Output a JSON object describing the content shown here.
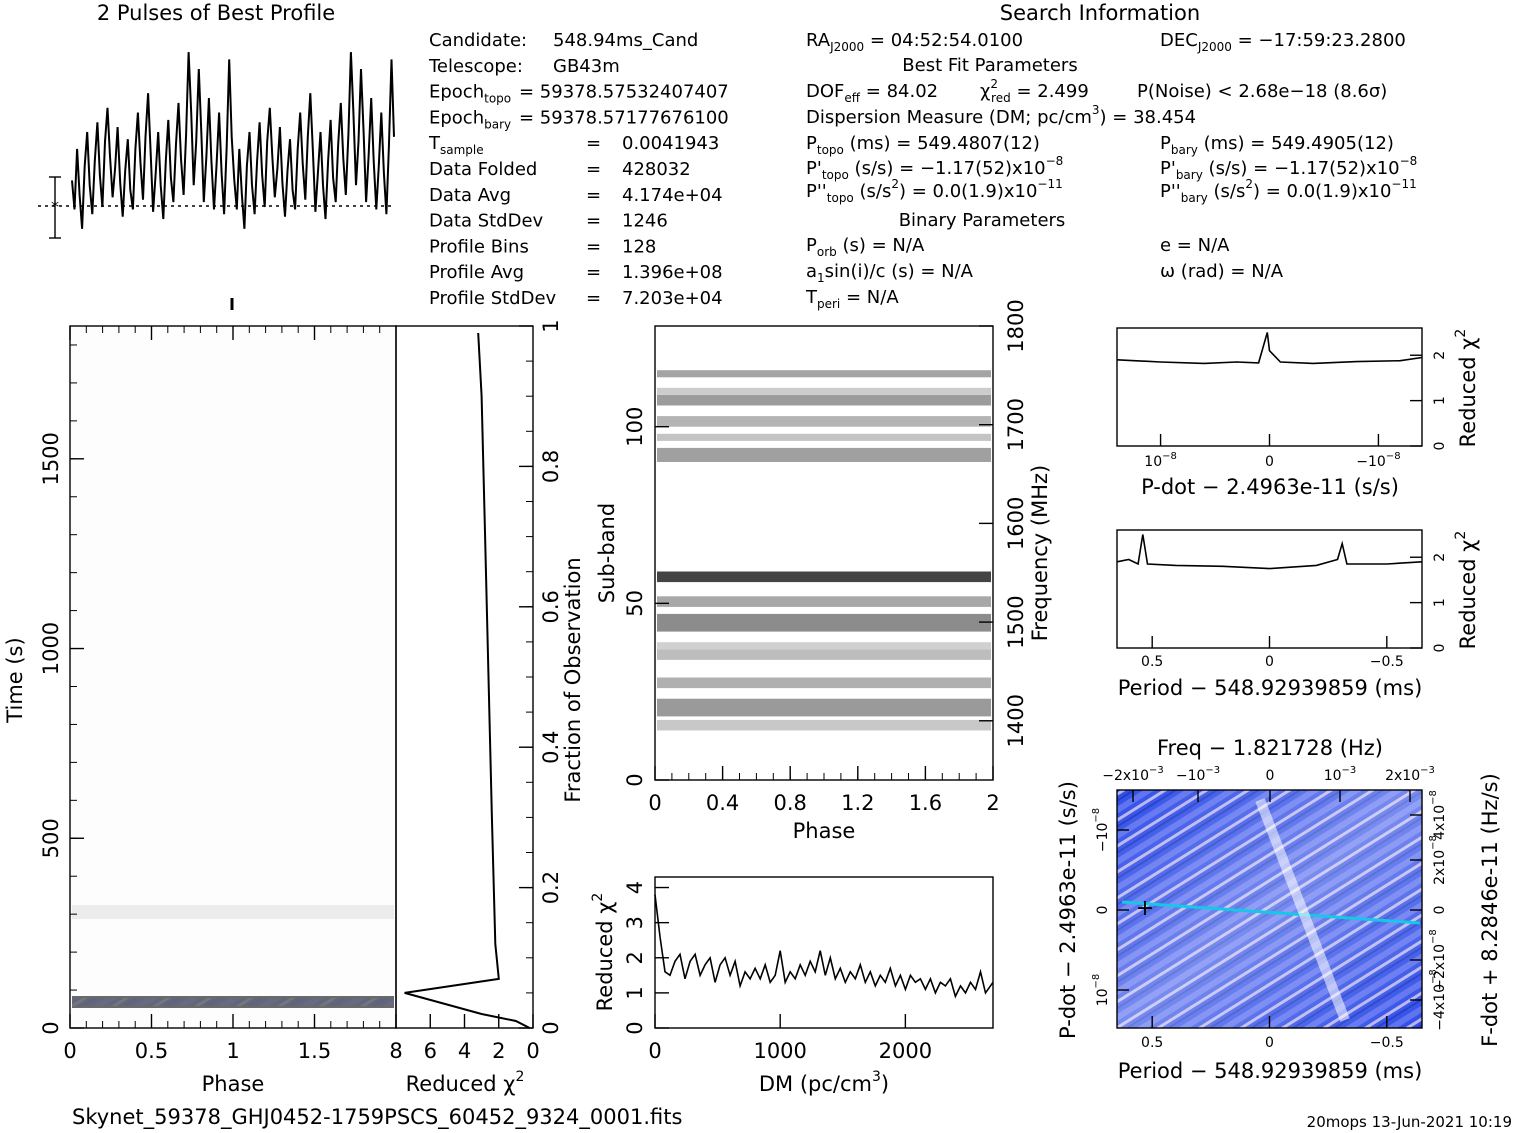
{
  "filename": "Skynet_59378_GHJ0452-1759PSCS_60452_9324_0001.fits",
  "stamp": "20mops 13-Jun-2021 10:19",
  "profile": {
    "title": "2 Pulses of Best Profile"
  },
  "search_info": {
    "title": "Search Information",
    "best_fit_title": "Best Fit Parameters",
    "binary_title": "Binary Parameters",
    "ra": "RA",
    "ra_sub": "J2000",
    "ra_value": " = 04:52:54.0100",
    "dec": "DEC",
    "dec_sub": "J2000",
    "dec_value": " = −17:59:23.2800",
    "dof": "DOF",
    "dof_sub": "eff",
    "dof_value": " = 84.02",
    "chi": "χ",
    "chi_sup": "2",
    "chi_sub": "red",
    "chi_value": " = 2.499",
    "pnoise": "P(Noise) < 2.68e−18  (8.6σ)",
    "dm_line": "Dispersion Measure (DM; pc/cm",
    "dm_sup": "3",
    "dm_value": ") = 38.454",
    "ptopo": "P",
    "ptopo_sub": "topo",
    "ptopo_value": " (ms) =  549.4807(12)",
    "pbary": "P",
    "pbary_sub": "bary",
    "pbary_value": " (ms) =  549.4905(12)",
    "pdtopo": "P'",
    "pdtopo_sub": "topo",
    "pdtopo_value": " (s/s) = −1.17(52)x10",
    "pdtopo_exp": "−8",
    "pdbary": "P'",
    "pdbary_sub": "bary",
    "pdbary_value": " (s/s) = −1.17(52)x10",
    "pdbary_exp": "−8",
    "pddtopo": "P''",
    "pddtopo_sub": "topo",
    "pddtopo_value": " (s/s",
    "pddtopo_sup": "2",
    "pddtopo_value2": ") = 0.0(1.9)x10",
    "pddtopo_exp": "−11",
    "pddbary": "P''",
    "pddbary_sub": "bary",
    "pddbary_value": " (s/s",
    "pddbary_sup": "2",
    "pddbary_value2": ") = 0.0(1.9)x10",
    "pddbary_exp": "−11",
    "porb": "P",
    "porb_sub": "orb",
    "porb_value": " (s) = N/A",
    "ecc": "e = N/A",
    "a1": "a",
    "a1_sub": "1",
    "a1_value": "sin(i)/c (s) = N/A",
    "omega": "ω (rad) = N/A",
    "tperi": "T",
    "tperi_sub": "peri",
    "tperi_value": " = N/A"
  },
  "candidate_info": {
    "rows": [
      {
        "label": "Candidate:",
        "value": "548.94ms_Cand"
      },
      {
        "label": "Telescope:",
        "value": "GB43m"
      },
      {
        "label": "Epoch",
        "sub": "topo",
        "value": "= 59378.57532407407"
      },
      {
        "label": "Epoch",
        "sub": "bary",
        "value": "= 59378.57177676100"
      },
      {
        "label": "T",
        "sub": "sample",
        "eq": "=",
        "value": "0.0041943"
      },
      {
        "label": "Data Folded",
        "eq": "=",
        "value": "428032"
      },
      {
        "label": "Data Avg",
        "eq": "=",
        "value": "4.174e+04"
      },
      {
        "label": "Data StdDev",
        "eq": "=",
        "value": "1246"
      },
      {
        "label": "Profile Bins",
        "eq": "=",
        "value": "128"
      },
      {
        "label": "Profile Avg",
        "eq": "=",
        "value": "1.396e+08"
      },
      {
        "label": "Profile StdDev",
        "eq": "=",
        "value": "7.203e+04"
      }
    ]
  },
  "time_phase": {
    "xlabel": "Phase",
    "ylabel": "Time (s)",
    "xticks": [
      "0",
      "0.5",
      "1",
      "1.5"
    ],
    "yticks": [
      "0",
      "500",
      "1000",
      "1500"
    ]
  },
  "time_chi": {
    "xlabel": "Reduced χ",
    "xlabel_sup": "2",
    "ylabel": "Fraction of Observation",
    "xticks": [
      "8",
      "6",
      "4",
      "2",
      "0"
    ],
    "yticks": [
      "0",
      "0.2",
      "0.4",
      "0.6",
      "0.8",
      "1"
    ]
  },
  "subband": {
    "xlabel": "Phase",
    "ylabel": "Sub-band",
    "ylabel2": "Frequency (MHz)",
    "xticks": [
      "0",
      "0.4",
      "0.8",
      "1.2",
      "1.6",
      "2"
    ],
    "yticks": [
      "0",
      "50",
      "100"
    ],
    "yticks2": [
      "1400",
      "1500",
      "1600",
      "1700",
      "1800"
    ]
  },
  "dm_plot": {
    "xlabel": "DM (pc/cm",
    "xlabel_sup": "3",
    "xlabel_end": ")",
    "ylabel": "Reduced χ",
    "ylabel_sup": "2",
    "xticks": [
      "0",
      "1000",
      "2000"
    ],
    "yticks": [
      "0",
      "1",
      "2",
      "3",
      "4"
    ]
  },
  "pdot_plot": {
    "xlabel": "P-dot − 2.4963e-11 (s/s)",
    "ylabel": "Reduced χ",
    "ylabel_sup": "2",
    "xticks": [
      "10",
      "0",
      "−10"
    ],
    "xtick_exp": "−8",
    "yticks": [
      "0",
      "1",
      "2"
    ]
  },
  "period_plot": {
    "xlabel": "Period − 548.92939859 (ms)",
    "ylabel": "Reduced χ",
    "ylabel_sup": "2",
    "xticks": [
      "0.5",
      "0",
      "−0.5"
    ],
    "yticks": [
      "0",
      "1",
      "2"
    ]
  },
  "pp_plane": {
    "top_label": "Freq − 1.821728 (Hz)",
    "top_ticks": [
      "−2x10",
      "−10",
      "0",
      "10",
      "2x10"
    ],
    "top_tick_exp": "−3",
    "xlabel": "Period − 548.92939859 (ms)",
    "ylabel": "P-dot − 2.4963e-11 (s/s)",
    "ylabel2": "F-dot + 8.2846e-11 (Hz/s)",
    "xticks": [
      "0.5",
      "0",
      "−0.5"
    ],
    "yticks": [
      "10",
      "0",
      "−10"
    ],
    "ytick_exp": "−8",
    "rticks": [
      "−4x10",
      "−2x10",
      "0",
      "2x10",
      "4x10"
    ],
    "rtick_exp": "−8"
  },
  "colors": {
    "pp_bg": "#2f4ee8",
    "pp_light": "#b8b4f0",
    "pp_cyan": "#17c8e6"
  },
  "chart_data": [
    {
      "type": "line",
      "name": "profile",
      "title": "2 Pulses of Best Profile",
      "x_range": [
        0,
        2
      ],
      "bins": 128,
      "values": [
        0.42,
        0.3,
        0.55,
        0.36,
        0.22,
        0.48,
        0.62,
        0.4,
        0.28,
        0.5,
        0.66,
        0.44,
        0.31,
        0.58,
        0.72,
        0.52,
        0.35,
        0.47,
        0.64,
        0.41,
        0.27,
        0.46,
        0.59,
        0.38,
        0.3,
        0.55,
        0.7,
        0.49,
        0.34,
        0.6,
        0.78,
        0.54,
        0.29,
        0.45,
        0.62,
        0.4,
        0.26,
        0.5,
        0.67,
        0.43,
        0.33,
        0.57,
        0.74,
        0.51,
        0.36,
        0.61,
        0.95,
        0.7,
        0.4,
        0.58,
        0.88,
        0.62,
        0.33,
        0.52,
        0.76,
        0.5,
        0.3,
        0.48,
        0.7,
        0.45,
        0.28,
        0.56,
        0.92,
        0.6,
        0.42,
        0.3,
        0.55,
        0.36,
        0.22,
        0.48,
        0.62,
        0.4,
        0.28,
        0.5,
        0.66,
        0.44,
        0.31,
        0.58,
        0.72,
        0.52,
        0.35,
        0.47,
        0.64,
        0.41,
        0.27,
        0.46,
        0.59,
        0.38,
        0.3,
        0.55,
        0.7,
        0.49,
        0.34,
        0.6,
        0.78,
        0.54,
        0.29,
        0.45,
        0.62,
        0.4,
        0.26,
        0.5,
        0.67,
        0.43,
        0.33,
        0.57,
        0.74,
        0.51,
        0.36,
        0.61,
        0.95,
        0.7,
        0.4,
        0.58,
        0.88,
        0.62,
        0.33,
        0.52,
        0.76,
        0.5,
        0.3,
        0.48,
        0.7,
        0.45,
        0.28,
        0.56,
        0.92,
        0.6
      ]
    },
    {
      "type": "line",
      "name": "time-chi2",
      "xlabel": "Reduced χ2",
      "ylabel": "Fraction of Observation",
      "xlim": [
        8,
        0
      ],
      "ylim": [
        0,
        1
      ],
      "points": [
        [
          0.2,
          0
        ],
        [
          1.0,
          0.01
        ],
        [
          3.0,
          0.02
        ],
        [
          7.5,
          0.05
        ],
        [
          2.0,
          0.07
        ],
        [
          2.2,
          0.12
        ],
        [
          2.4,
          0.3
        ],
        [
          2.6,
          0.5
        ],
        [
          2.8,
          0.7
        ],
        [
          3.0,
          0.9
        ],
        [
          3.2,
          0.99
        ]
      ]
    },
    {
      "type": "line",
      "name": "dm-chi2",
      "xlabel": "DM (pc/cm3)",
      "ylabel": "Reduced χ2",
      "xlim": [
        0,
        2700
      ],
      "ylim": [
        0,
        4.3
      ],
      "points": [
        [
          0,
          3.8
        ],
        [
          40,
          2.6
        ],
        [
          80,
          1.6
        ],
        [
          120,
          1.5
        ],
        [
          160,
          1.9
        ],
        [
          200,
          2.1
        ],
        [
          240,
          1.4
        ],
        [
          280,
          1.9
        ],
        [
          320,
          2.1
        ],
        [
          360,
          1.5
        ],
        [
          400,
          1.8
        ],
        [
          440,
          2.0
        ],
        [
          480,
          1.3
        ],
        [
          520,
          1.8
        ],
        [
          560,
          2.0
        ],
        [
          600,
          1.5
        ],
        [
          640,
          1.9
        ],
        [
          680,
          1.2
        ],
        [
          720,
          1.6
        ],
        [
          760,
          1.4
        ],
        [
          800,
          1.7
        ],
        [
          840,
          1.4
        ],
        [
          880,
          1.8
        ],
        [
          920,
          1.3
        ],
        [
          960,
          1.5
        ],
        [
          1000,
          2.2
        ],
        [
          1040,
          1.3
        ],
        [
          1080,
          1.6
        ],
        [
          1120,
          1.4
        ],
        [
          1160,
          1.8
        ],
        [
          1200,
          1.5
        ],
        [
          1240,
          1.9
        ],
        [
          1280,
          1.6
        ],
        [
          1320,
          2.2
        ],
        [
          1360,
          1.5
        ],
        [
          1400,
          2.0
        ],
        [
          1440,
          1.4
        ],
        [
          1480,
          1.7
        ],
        [
          1520,
          1.3
        ],
        [
          1560,
          1.6
        ],
        [
          1600,
          1.4
        ],
        [
          1640,
          1.8
        ],
        [
          1680,
          1.3
        ],
        [
          1720,
          1.6
        ],
        [
          1760,
          1.2
        ],
        [
          1800,
          1.5
        ],
        [
          1840,
          1.3
        ],
        [
          1880,
          1.7
        ],
        [
          1920,
          1.2
        ],
        [
          1960,
          1.5
        ],
        [
          2000,
          1.1
        ],
        [
          2040,
          1.5
        ],
        [
          2080,
          1.3
        ],
        [
          2120,
          1.4
        ],
        [
          2160,
          1.1
        ],
        [
          2200,
          1.4
        ],
        [
          2240,
          1.0
        ],
        [
          2280,
          1.3
        ],
        [
          2320,
          1.2
        ],
        [
          2360,
          1.4
        ],
        [
          2400,
          0.9
        ],
        [
          2440,
          1.2
        ],
        [
          2480,
          1.0
        ],
        [
          2520,
          1.3
        ],
        [
          2560,
          1.1
        ],
        [
          2600,
          1.6
        ],
        [
          2640,
          1.0
        ],
        [
          2700,
          1.3
        ]
      ]
    },
    {
      "type": "line",
      "name": "pdot-chi2",
      "xlabel": "P-dot − 2.4963e-11 (s/s)",
      "ylabel": "Reduced χ2",
      "xlim": [
        1.4e-08,
        -1.4e-08
      ],
      "ylim": [
        0,
        2.6
      ],
      "points": [
        [
          1.4e-08,
          1.9
        ],
        [
          1e-08,
          1.85
        ],
        [
          6e-09,
          1.82
        ],
        [
          3e-09,
          1.85
        ],
        [
          1e-09,
          1.83
        ],
        [
          2e-10,
          2.5
        ],
        [
          0,
          2.1
        ],
        [
          -1e-09,
          1.85
        ],
        [
          -4e-09,
          1.82
        ],
        [
          -8e-09,
          1.86
        ],
        [
          -1.2e-08,
          1.88
        ],
        [
          -1.4e-08,
          1.95
        ]
      ]
    },
    {
      "type": "line",
      "name": "period-chi2",
      "xlabel": "Period − 548.92939859 (ms)",
      "ylabel": "Reduced χ2",
      "xlim": [
        0.65,
        -0.65
      ],
      "ylim": [
        0,
        2.6
      ],
      "points": [
        [
          0.65,
          1.9
        ],
        [
          0.6,
          1.95
        ],
        [
          0.56,
          1.85
        ],
        [
          0.54,
          2.5
        ],
        [
          0.52,
          1.85
        ],
        [
          0.4,
          1.82
        ],
        [
          0.2,
          1.8
        ],
        [
          0,
          1.75
        ],
        [
          -0.2,
          1.82
        ],
        [
          -0.29,
          1.95
        ],
        [
          -0.31,
          2.3
        ],
        [
          -0.33,
          1.85
        ],
        [
          -0.5,
          1.85
        ],
        [
          -0.65,
          1.9
        ]
      ]
    }
  ]
}
